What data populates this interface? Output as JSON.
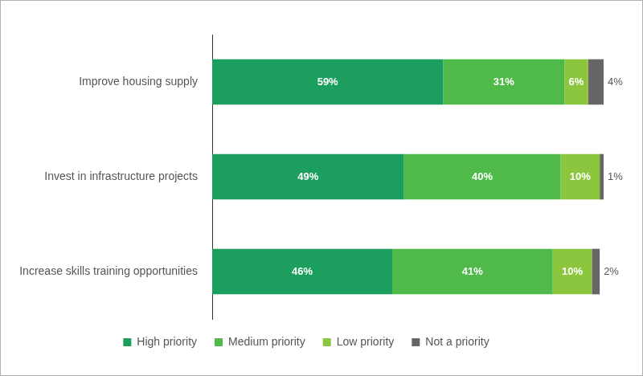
{
  "chart_data": {
    "type": "bar",
    "orientation": "horizontal",
    "stacked": true,
    "data_labels": true,
    "tick_labels": "y",
    "grid": false,
    "legend": "bottom",
    "categories": [
      "Improve housing supply",
      "Invest in infrastructure projects",
      "Increase skills training opportunities"
    ],
    "xlim": [
      0,
      100
    ],
    "series": [
      {
        "name": "High priority",
        "color": "#1b9e5e",
        "values": [
          59,
          49,
          46
        ],
        "value_labels": [
          "59%",
          "49%",
          "46%"
        ]
      },
      {
        "name": "Medium priority",
        "color": "#4fba4a",
        "values": [
          31,
          40,
          41
        ],
        "value_labels": [
          "31%",
          "40%",
          "41%"
        ]
      },
      {
        "name": "Low priority",
        "color": "#8cc63e",
        "values": [
          6,
          10,
          10
        ],
        "value_labels": [
          "6%",
          "10%",
          "10%"
        ]
      },
      {
        "name": "Not a priority",
        "color": "#666666",
        "values": [
          4,
          1,
          2
        ],
        "value_labels": [
          "4%",
          "1%",
          "2%"
        ]
      }
    ]
  }
}
